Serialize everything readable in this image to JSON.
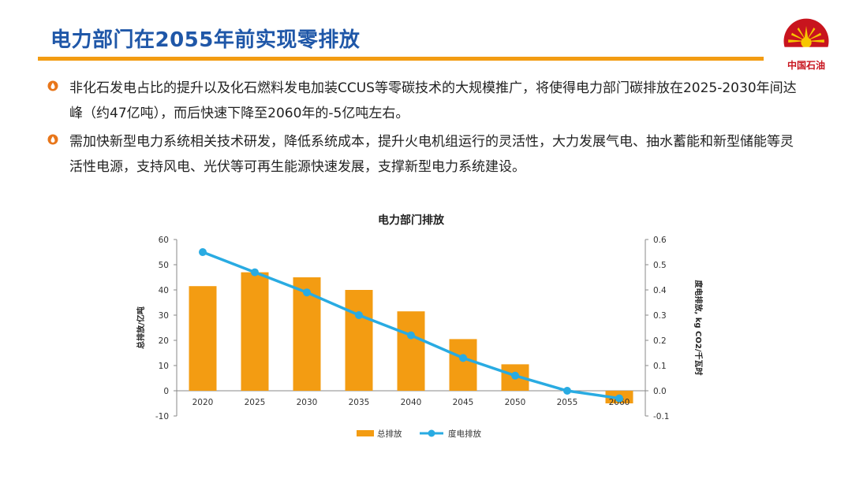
{
  "slide": {
    "title": "电力部门在2055年前实现零排放",
    "logo_text": "中国石油",
    "bullets": [
      "非化石发电占比的提升以及化石燃料发电加装CCUS等零碳技术的大规模推广，将使得电力部门碳排放在2025-2030年间达峰（约47亿吨），而后快速下降至2060年的-5亿吨左右。",
      "需加快新型电力系统相关技术研发，降低系统成本，提升火电机组运行的灵活性，大力发展气电、抽水蓄能和新型储能等灵活性电源，支持风电、光伏等可再生能源快速发展，支撑新型电力系统建设。"
    ]
  },
  "colors": {
    "title": "#1f57a8",
    "rule": "#f39c12",
    "bar": "#f39c12",
    "line": "#29abe2",
    "logo_red": "#c8141e",
    "logo_yellow": "#f7c600"
  },
  "chart_data": {
    "type": "bar",
    "title": "电力部门排放",
    "categories": [
      "2020",
      "2025",
      "2030",
      "2035",
      "2040",
      "2045",
      "2050",
      "2055",
      "2060"
    ],
    "ylabel": "总排放/亿吨",
    "y2label": "度电排放, kg CO2/千瓦时",
    "ylim": [
      -10,
      60
    ],
    "y_ticks": [
      "60",
      "50",
      "40",
      "30",
      "20",
      "10",
      "0",
      "-10"
    ],
    "y2lim": [
      -0.1,
      0.6
    ],
    "y2_ticks": [
      "0.6",
      "0.5",
      "0.4",
      "0.3",
      "0.2",
      "0.1",
      "0.0",
      "-0.1"
    ],
    "grid": false,
    "legend_position": "bottom",
    "series": [
      {
        "name": "总排放",
        "kind": "bar",
        "axis": "left",
        "values": [
          41.5,
          47,
          45,
          40,
          31.5,
          20.5,
          10.5,
          0,
          -5
        ]
      },
      {
        "name": "度电排放",
        "kind": "line",
        "axis": "right",
        "values": [
          0.55,
          0.47,
          0.39,
          0.3,
          0.22,
          0.13,
          0.06,
          0.0,
          -0.03
        ]
      }
    ]
  }
}
